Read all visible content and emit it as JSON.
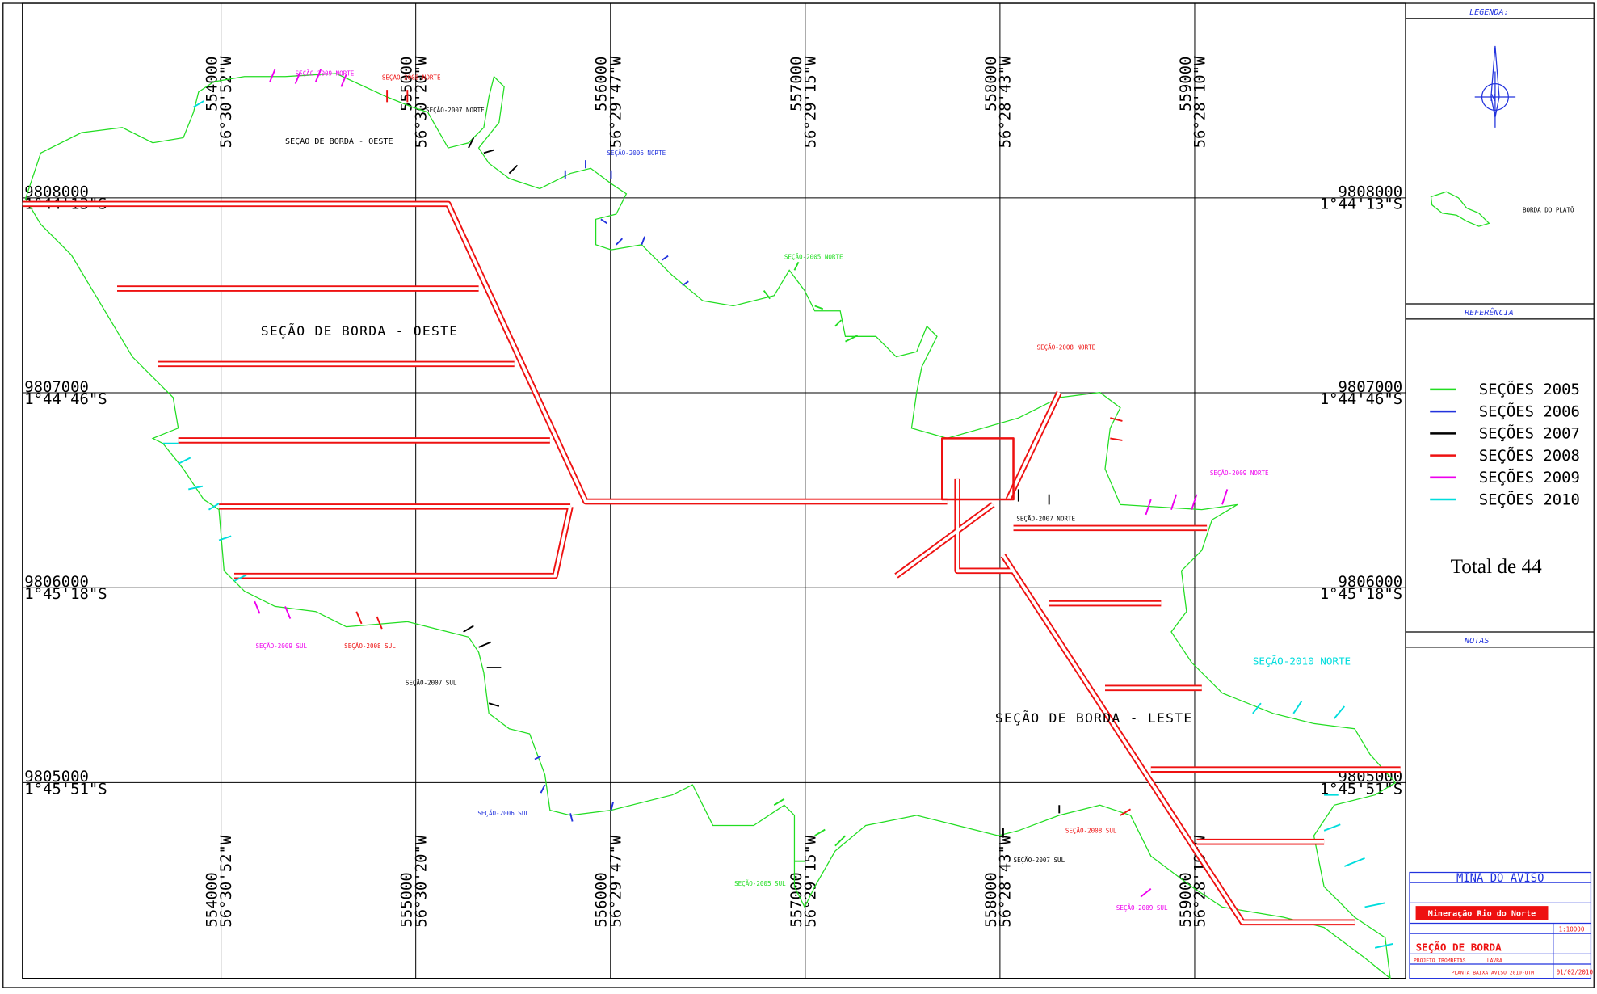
{
  "grid": {
    "eastings": [
      {
        "easting": "554000",
        "lon": "56°30'52\"W"
      },
      {
        "easting": "555000",
        "lon": "56°30'20\"W"
      },
      {
        "easting": "556000",
        "lon": "56°29'47\"W"
      },
      {
        "easting": "557000",
        "lon": "56°29'15\"W"
      },
      {
        "easting": "558000",
        "lon": "56°28'43\"W"
      },
      {
        "easting": "559000",
        "lon": "56°28'10\"W"
      }
    ],
    "northings": [
      {
        "northing": "9808000",
        "lat": "1°44'13\"S"
      },
      {
        "northing": "9807000",
        "lat": "1°44'46\"S"
      },
      {
        "northing": "9806000",
        "lat": "1°45'18\"S"
      },
      {
        "northing": "9805000",
        "lat": "1°45'51\"S"
      }
    ]
  },
  "legend": {
    "title": "LEGENDA:",
    "plateau": "BORDA DO PLATÔ",
    "reference": "REFERÊNCIA",
    "entries": [
      {
        "name": "SEÇÕES 2005",
        "color": "#22dd22"
      },
      {
        "name": "SEÇÕES 2006",
        "color": "#2233dd"
      },
      {
        "name": "SEÇÕES 2007",
        "color": "#000000"
      },
      {
        "name": "SEÇÕES 2008",
        "color": "#ee1111"
      },
      {
        "name": "SEÇÕES 2009",
        "color": "#ee00ee"
      },
      {
        "name": "SEÇÕES 2010",
        "color": "#00dddd"
      }
    ],
    "total": "Total de 44",
    "notes": "NOTAS"
  },
  "title_block": {
    "mine": "MINA DO AVISO",
    "company": "Mineração Rio do Norte",
    "scale": "1:10000",
    "drawing_title": "SEÇÃO DE BORDA",
    "project": "PROJETO TROMBETAS",
    "area": "LAVRA",
    "file": "PLANTA BAIXA_AVISO 2010-UTM",
    "date": "01/02/2010"
  },
  "map_labels": {
    "west_big": "SEÇÃO DE BORDA - OESTE",
    "west_small": "SEÇÃO DE BORDA - OESTE",
    "east_big": "SEÇÃO DE BORDA - LESTE",
    "n2009": "SEÇÃO-2009 NORTE",
    "n2008": "SEÇÃO-2008 NORTE",
    "n2007": "SEÇÃO-2007 NORTE",
    "n2006": "SEÇÃO-2006 NORTE",
    "n2005": "SEÇÃO-2005 NORTE",
    "e2008n": "SEÇÃO-2008 NORTE",
    "e2009n": "SEÇÃO-2009 NORTE",
    "e2007n": "SEÇÃO-2007 NORTE",
    "e2010n": "SEÇÃO-2010 NORTE",
    "s2009": "SEÇÃO-2009 SUL",
    "s2008": "SEÇÃO-2008 SUL",
    "s2007": "SEÇÃO-2007 SUL",
    "s2006": "SEÇÃO-2006 SUL",
    "s2005": "SEÇÃO-2005 SUL",
    "e2008s": "SEÇÃO-2008 SUL",
    "e2007s": "SEÇÃO-2007 SUL",
    "e2009s": "SEÇÃO-2009 SUL"
  }
}
